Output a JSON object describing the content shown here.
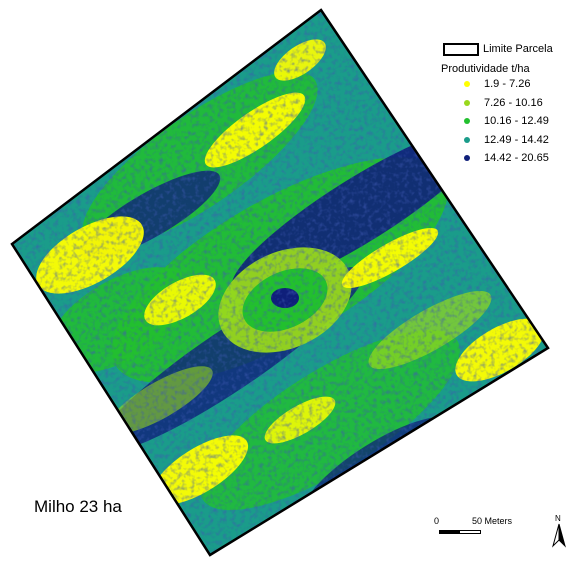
{
  "legend": {
    "boundary_label": "Limite Parcela",
    "title": "Produtividade t/ha",
    "classes": [
      {
        "label": "1.9 - 7.26",
        "color": "#ffff00"
      },
      {
        "label": "7.26 - 10.16",
        "color": "#99d81c"
      },
      {
        "label": "10.16 - 12.49",
        "color": "#22c02e"
      },
      {
        "label": "12.49 - 14.42",
        "color": "#1a9c8a"
      },
      {
        "label": "14.42 - 20.65",
        "color": "#0f1f7a"
      }
    ]
  },
  "caption": "Milho 23 ha",
  "scale_bar": {
    "zero_label": "0",
    "distance_label": "50 Meters"
  },
  "north_arrow": {
    "letter": "N"
  }
}
